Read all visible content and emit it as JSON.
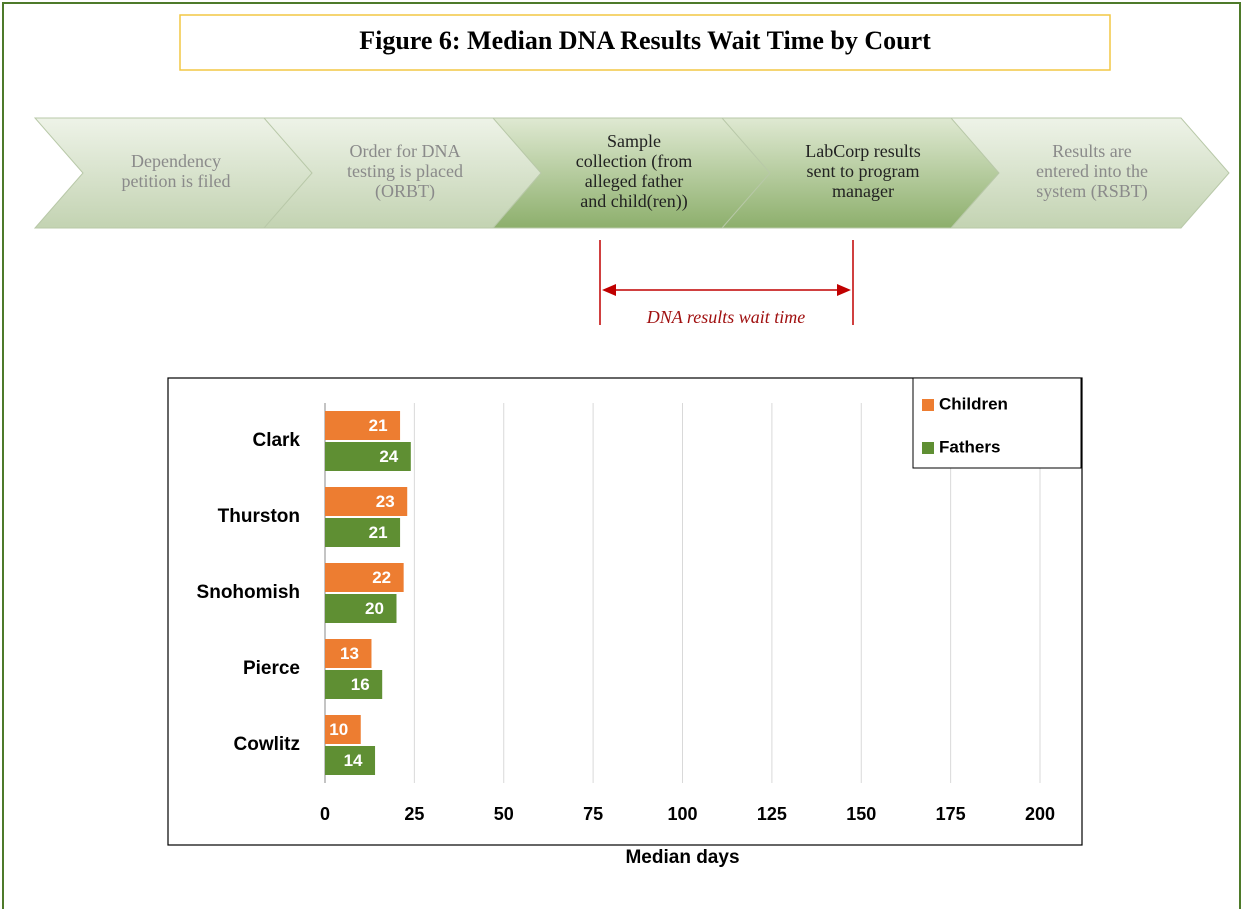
{
  "title": "Figure 6: Median DNA Results Wait Time by Court",
  "process": {
    "steps": [
      [
        "Dependency",
        "petition is filed"
      ],
      [
        "Order for DNA",
        "testing is placed",
        "(ORBT)"
      ],
      [
        "Sample",
        "collection (from",
        "alleged father",
        "and child(ren))"
      ],
      [
        "LabCorp results",
        "sent to program",
        "manager"
      ],
      [
        "Results are",
        "entered into the",
        "system (RSBT)"
      ]
    ],
    "annotation": "DNA results wait time"
  },
  "chart_data": {
    "type": "bar",
    "orientation": "horizontal",
    "categories": [
      "Clark",
      "Thurston",
      "Snohomish",
      "Pierce",
      "Cowlitz"
    ],
    "series": [
      {
        "name": "Children",
        "color": "#ed7d31",
        "values": [
          21,
          23,
          22,
          13,
          10
        ]
      },
      {
        "name": "Fathers",
        "color": "#5f8f33",
        "values": [
          24,
          21,
          20,
          16,
          14
        ]
      }
    ],
    "xlim": [
      0,
      200
    ],
    "xticks": [
      0,
      25,
      50,
      75,
      100,
      125,
      150,
      175,
      200
    ],
    "x_label": "Median days",
    "grid": true,
    "legend": "top-right"
  }
}
